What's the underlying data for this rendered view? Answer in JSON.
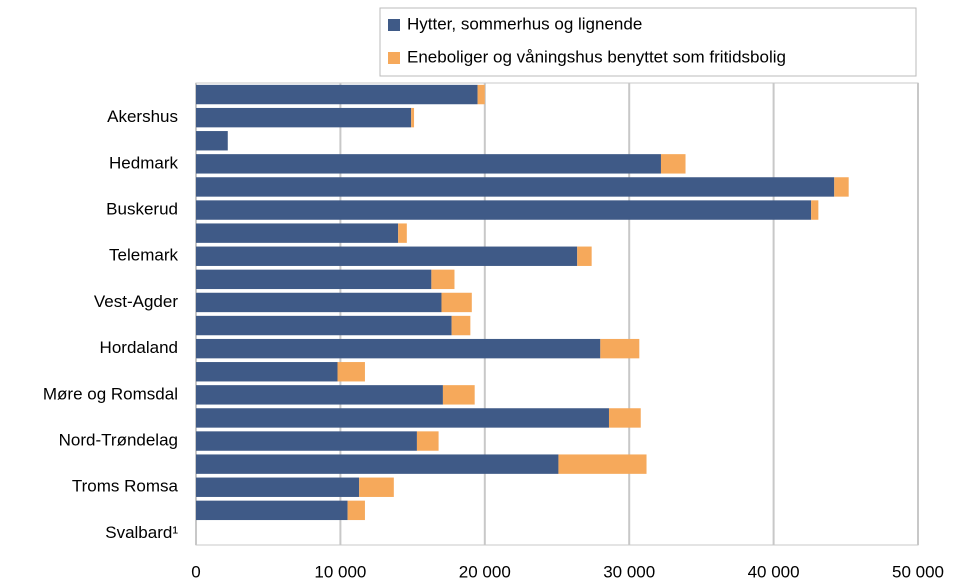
{
  "chart_data": {
    "type": "stacked_barh",
    "categories": [
      null,
      "Akershus",
      null,
      "Hedmark",
      null,
      "Buskerud",
      null,
      "Telemark",
      null,
      "Vest-Agder",
      null,
      "Hordaland",
      null,
      "Møre og Romsdal",
      null,
      "Nord-Trøndelag",
      null,
      "Troms Romsa",
      null,
      "Svalbard¹"
    ],
    "series": [
      {
        "name": "Hytter, sommerhus og lignende",
        "color": "#3f5a87",
        "values": [
          19500,
          14900,
          2200,
          32200,
          44200,
          42600,
          14000,
          26400,
          16300,
          17000,
          17700,
          28000,
          9800,
          17100,
          28600,
          15300,
          25100,
          11300,
          10500,
          0
        ]
      },
      {
        "name": "Eneboliger og våningshus benyttet som fritidsbolig",
        "color": "#f6a95b",
        "values": [
          500,
          200,
          0,
          1700,
          1000,
          500,
          600,
          1000,
          1600,
          2100,
          1300,
          2700,
          1900,
          2200,
          2200,
          1500,
          6100,
          2400,
          1200,
          0
        ]
      }
    ],
    "xlim": [
      0,
      50000
    ],
    "xticks": [
      0,
      {
        "value": 10000,
        "label": "10 000"
      },
      {
        "value": 20000,
        "label": "20 000"
      },
      {
        "value": 30000,
        "label": "30 000"
      },
      {
        "value": 40000,
        "label": "40 000"
      },
      {
        "value": 50000,
        "label": "50 000"
      }
    ],
    "grid": true
  }
}
